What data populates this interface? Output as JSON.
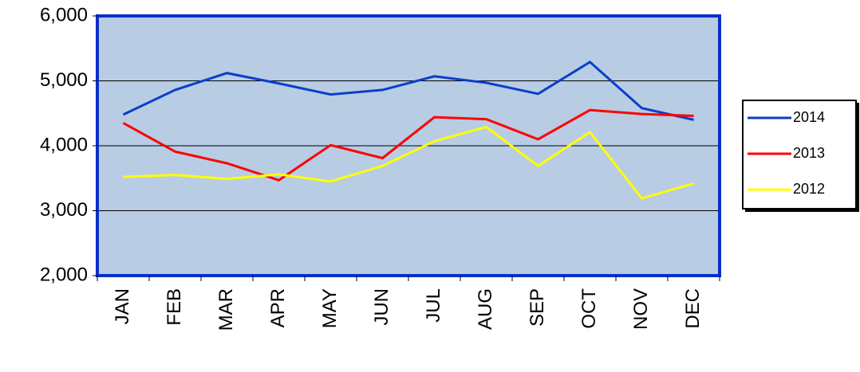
{
  "chart_data": {
    "type": "line",
    "categories": [
      "JAN",
      "FEB",
      "MAR",
      "APR",
      "MAY",
      "JUN",
      "JUL",
      "AUG",
      "SEP",
      "OCT",
      "NOV",
      "DEC"
    ],
    "series": [
      {
        "name": "2014",
        "color": "#0a3fc8",
        "values": [
          4480,
          4860,
          5120,
          4960,
          4790,
          4860,
          5070,
          4970,
          4800,
          5290,
          4580,
          4400
        ]
      },
      {
        "name": "2013",
        "color": "#ff0000",
        "values": [
          4350,
          3910,
          3730,
          3470,
          4010,
          3810,
          4440,
          4410,
          4100,
          4550,
          4490,
          4460
        ]
      },
      {
        "name": "2012",
        "color": "#ffff00",
        "values": [
          3520,
          3550,
          3490,
          3560,
          3450,
          3690,
          4070,
          4290,
          3690,
          4210,
          3190,
          3420
        ]
      }
    ],
    "ylim": [
      2000,
      6000
    ],
    "yticks": [
      {
        "value": 2000,
        "label": "2,000"
      },
      {
        "value": 3000,
        "label": "3,000"
      },
      {
        "value": 4000,
        "label": "4,000"
      },
      {
        "value": 5000,
        "label": "5,000"
      },
      {
        "value": 6000,
        "label": "6,000"
      }
    ],
    "grid": true,
    "legend": "right"
  }
}
